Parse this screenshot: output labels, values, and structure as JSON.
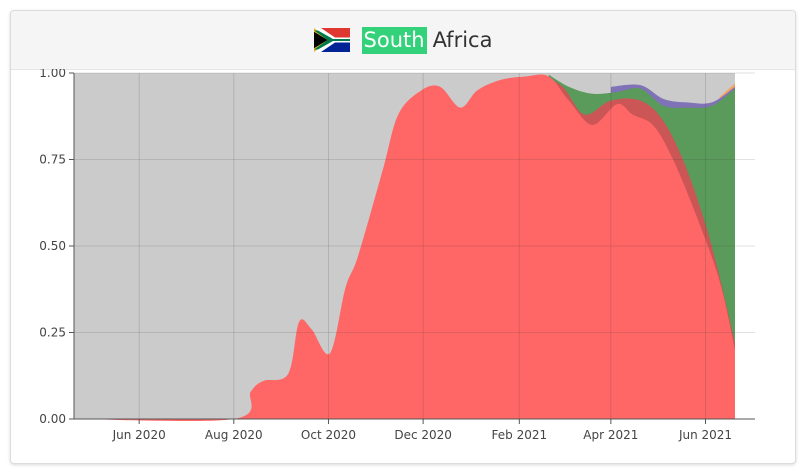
{
  "header": {
    "country_highlight": "South",
    "country_rest": "Africa",
    "flag": "south-africa-flag"
  },
  "colors": {
    "background": "#cbcbcb",
    "red": "#ff6666",
    "red_dark": "#cc5555",
    "green": "#5a9a5a",
    "purple": "#7f72b6",
    "orange": "#f4a460",
    "highlight": "#33d17a"
  },
  "chart_data": {
    "type": "area",
    "title": "",
    "xlabel": "",
    "ylabel": "",
    "ylim": [
      0,
      1
    ],
    "grid": true,
    "x_ticks": [
      "Jun 2020",
      "Aug 2020",
      "Oct 2020",
      "Dec 2020",
      "Feb 2021",
      "Apr 2021",
      "Jun 2021"
    ],
    "y_ticks": [
      "0.00",
      "0.25",
      "0.50",
      "0.75",
      "1.00"
    ],
    "series": [
      {
        "color": "#ff6666",
        "x": [
          "2020-04-20",
          "2020-08-01",
          "2020-08-12",
          "2020-08-20",
          "2020-09-05",
          "2020-09-12",
          "2020-09-20",
          "2020-10-02",
          "2020-10-12",
          "2020-10-20",
          "2020-11-05",
          "2020-11-15",
          "2020-11-30",
          "2020-12-12",
          "2020-12-25",
          "2021-01-05",
          "2021-01-20",
          "2021-02-05",
          "2021-02-20",
          "2021-03-05",
          "2021-03-20",
          "2021-04-05",
          "2021-04-15",
          "2021-04-28",
          "2021-05-10",
          "2021-05-25",
          "2021-06-10",
          "2021-06-20"
        ],
        "y": [
          0,
          0,
          0.08,
          0.11,
          0.13,
          0.28,
          0.26,
          0.19,
          0.38,
          0.47,
          0.72,
          0.88,
          0.95,
          0.96,
          0.9,
          0.95,
          0.98,
          0.99,
          0.99,
          0.92,
          0.85,
          0.91,
          0.88,
          0.85,
          0.76,
          0.6,
          0.4,
          0.2
        ]
      },
      {
        "color": "#cc5555",
        "x": [
          "2021-02-15",
          "2021-03-01",
          "2021-03-15",
          "2021-04-01",
          "2021-04-20",
          "2021-05-05",
          "2021-05-20",
          "2021-06-05",
          "2021-06-20"
        ],
        "y": [
          0.995,
          0.96,
          0.88,
          0.92,
          0.92,
          0.86,
          0.72,
          0.5,
          0.22
        ]
      },
      {
        "color": "#5a9a5a",
        "x": [
          "2021-02-20",
          "2021-03-05",
          "2021-03-20",
          "2021-04-05",
          "2021-04-20",
          "2021-05-05",
          "2021-05-20",
          "2021-06-05",
          "2021-06-20"
        ],
        "y": [
          0.995,
          0.96,
          0.94,
          0.945,
          0.955,
          0.905,
          0.9,
          0.905,
          0.955
        ]
      },
      {
        "color": "#7f72b6",
        "x": [
          "2021-04-01",
          "2021-04-20",
          "2021-05-05",
          "2021-05-20",
          "2021-06-05",
          "2021-06-20"
        ],
        "y": [
          0.96,
          0.965,
          0.925,
          0.915,
          0.915,
          0.96
        ]
      },
      {
        "color": "#f4a460",
        "x": [
          "2021-06-10",
          "2021-06-20"
        ],
        "y": [
          0.93,
          0.97
        ]
      }
    ]
  }
}
